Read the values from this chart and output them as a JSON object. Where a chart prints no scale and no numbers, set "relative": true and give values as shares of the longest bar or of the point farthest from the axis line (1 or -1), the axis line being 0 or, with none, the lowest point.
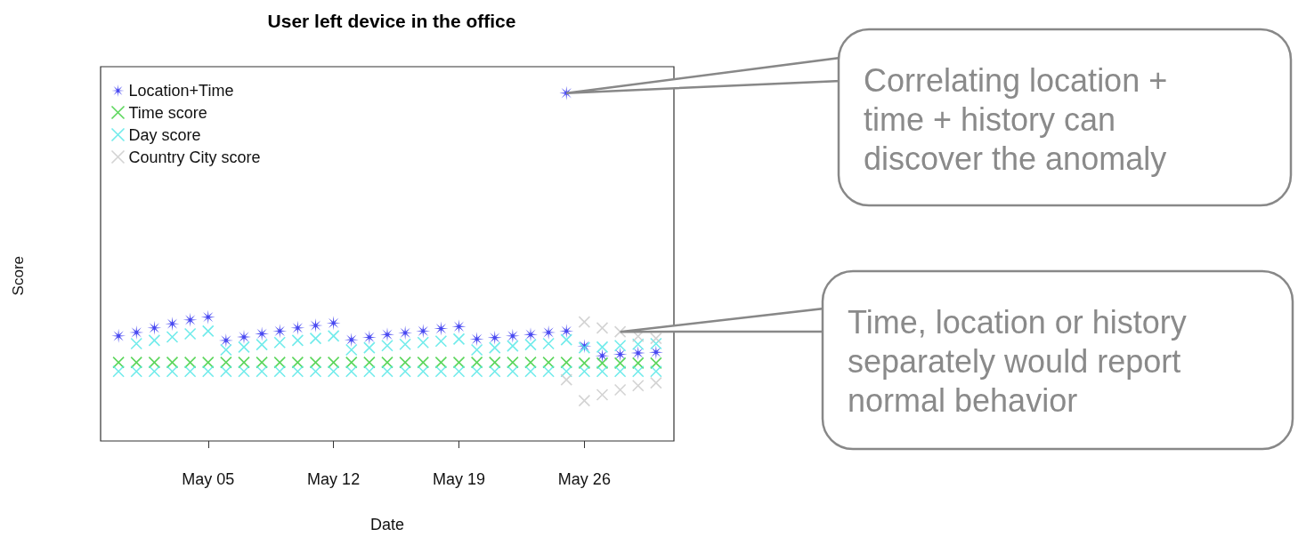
{
  "chart_data": {
    "type": "scatter",
    "title": "User left device in the office",
    "xlabel": "Date",
    "ylabel": "Score",
    "relative": true,
    "grid": false,
    "legend": "top left",
    "xlim": [
      "--04-29",
      "--05-31"
    ],
    "xticks": [
      {
        "value": "--05-05",
        "label": "May 05"
      },
      {
        "value": "--05-12",
        "label": "May 12"
      },
      {
        "value": "--05-19",
        "label": "May 19"
      },
      {
        "value": "--05-26",
        "label": "May 26"
      }
    ],
    "series": [
      {
        "name": "Location+Time",
        "color": "#1a1aee",
        "marker": "star",
        "x": [
          "--04-30",
          "--05-01",
          "--05-02",
          "--05-03",
          "--05-04",
          "--05-05",
          "--05-06",
          "--05-07",
          "--05-08",
          "--05-09",
          "--05-10",
          "--05-11",
          "--05-12",
          "--05-13",
          "--05-14",
          "--05-15",
          "--05-16",
          "--05-17",
          "--05-18",
          "--05-19",
          "--05-20",
          "--05-21",
          "--05-22",
          "--05-23",
          "--05-24",
          "--05-25",
          "--05-25",
          "--05-26",
          "--05-27",
          "--05-28",
          "--05-29",
          "--05-30"
        ],
        "values": [
          0.302,
          0.312,
          0.325,
          0.337,
          0.348,
          0.356,
          0.289,
          0.299,
          0.308,
          0.316,
          0.325,
          0.332,
          0.339,
          0.291,
          0.298,
          0.306,
          0.311,
          0.316,
          0.323,
          0.329,
          0.293,
          0.297,
          0.302,
          0.306,
          0.312,
          0.316,
          1,
          0.273,
          0.245,
          0.249,
          0.253,
          0.255
        ]
      },
      {
        "name": "Time score",
        "color": "#33cc33",
        "marker": "cross",
        "x": [
          "--04-30",
          "--05-01",
          "--05-02",
          "--05-03",
          "--05-04",
          "--05-05",
          "--05-06",
          "--05-07",
          "--05-08",
          "--05-09",
          "--05-10",
          "--05-11",
          "--05-12",
          "--05-13",
          "--05-14",
          "--05-15",
          "--05-16",
          "--05-17",
          "--05-18",
          "--05-19",
          "--05-20",
          "--05-21",
          "--05-22",
          "--05-23",
          "--05-24",
          "--05-25",
          "--05-26",
          "--05-27",
          "--05-28",
          "--05-29",
          "--05-30"
        ],
        "values": [
          0.226,
          0.226,
          0.226,
          0.226,
          0.226,
          0.226,
          0.226,
          0.226,
          0.226,
          0.226,
          0.226,
          0.226,
          0.226,
          0.226,
          0.226,
          0.226,
          0.226,
          0.226,
          0.226,
          0.226,
          0.226,
          0.226,
          0.226,
          0.226,
          0.226,
          0.226,
          0.224,
          0.224,
          0.224,
          0.224,
          0.224
        ]
      },
      {
        "name": "Day score",
        "color": "#4de6e6",
        "marker": "cross",
        "x": [
          "--05-01",
          "--05-02",
          "--05-03",
          "--05-04",
          "--05-05",
          "--05-06",
          "--05-07",
          "--05-08",
          "--05-09",
          "--05-10",
          "--05-11",
          "--05-12",
          "--05-13",
          "--05-14",
          "--05-15",
          "--05-16",
          "--05-17",
          "--05-18",
          "--05-19",
          "--05-20",
          "--05-21",
          "--05-22",
          "--05-23",
          "--05-24",
          "--05-25",
          "--05-26",
          "--05-27",
          "--05-28",
          "--05-29",
          "--05-30",
          "--04-30",
          "--05-01",
          "--05-02",
          "--05-03",
          "--05-04",
          "--05-05",
          "--05-06",
          "--05-07",
          "--05-08",
          "--05-09",
          "--05-10",
          "--05-11",
          "--05-12",
          "--05-13",
          "--05-14",
          "--05-15",
          "--05-16",
          "--05-17",
          "--05-18",
          "--05-19",
          "--05-20",
          "--05-21",
          "--05-22",
          "--05-23",
          "--05-24",
          "--05-25",
          "--05-26",
          "--05-27",
          "--05-28",
          "--05-29",
          "--05-30"
        ],
        "values": [
          0.28,
          0.289,
          0.299,
          0.308,
          0.316,
          0.262,
          0.27,
          0.277,
          0.283,
          0.289,
          0.295,
          0.302,
          0.262,
          0.268,
          0.274,
          0.278,
          0.283,
          0.287,
          0.293,
          0.262,
          0.268,
          0.273,
          0.277,
          0.28,
          0.291,
          0.268,
          0.27,
          0.274,
          0.278,
          0.28,
          0.2,
          0.2,
          0.2,
          0.2,
          0.2,
          0.2,
          0.2,
          0.2,
          0.2,
          0.2,
          0.2,
          0.2,
          0.2,
          0.2,
          0.2,
          0.2,
          0.2,
          0.2,
          0.2,
          0.2,
          0.2,
          0.2,
          0.2,
          0.2,
          0.2,
          0.2,
          0.2,
          0.2,
          0.2,
          0.2,
          0.2
        ]
      },
      {
        "name": "Country City score",
        "color": "#c8c8c8",
        "marker": "cross",
        "x": [
          "--05-26",
          "--05-27",
          "--05-28",
          "--05-29",
          "--05-30",
          "--05-25",
          "--05-26",
          "--05-27",
          "--05-28",
          "--05-29",
          "--05-30"
        ],
        "values": [
          0.342,
          0.325,
          0.314,
          0.301,
          0.295,
          0.176,
          0.116,
          0.133,
          0.147,
          0.159,
          0.167
        ]
      }
    ],
    "annotations": [
      {
        "text": "Correlating location + time + history can discover the anomaly",
        "x": "--05-25",
        "y": 1
      },
      {
        "text": "Time, location or history separately would report normal behavior",
        "x": "--05-28",
        "y": 0.314
      }
    ]
  }
}
